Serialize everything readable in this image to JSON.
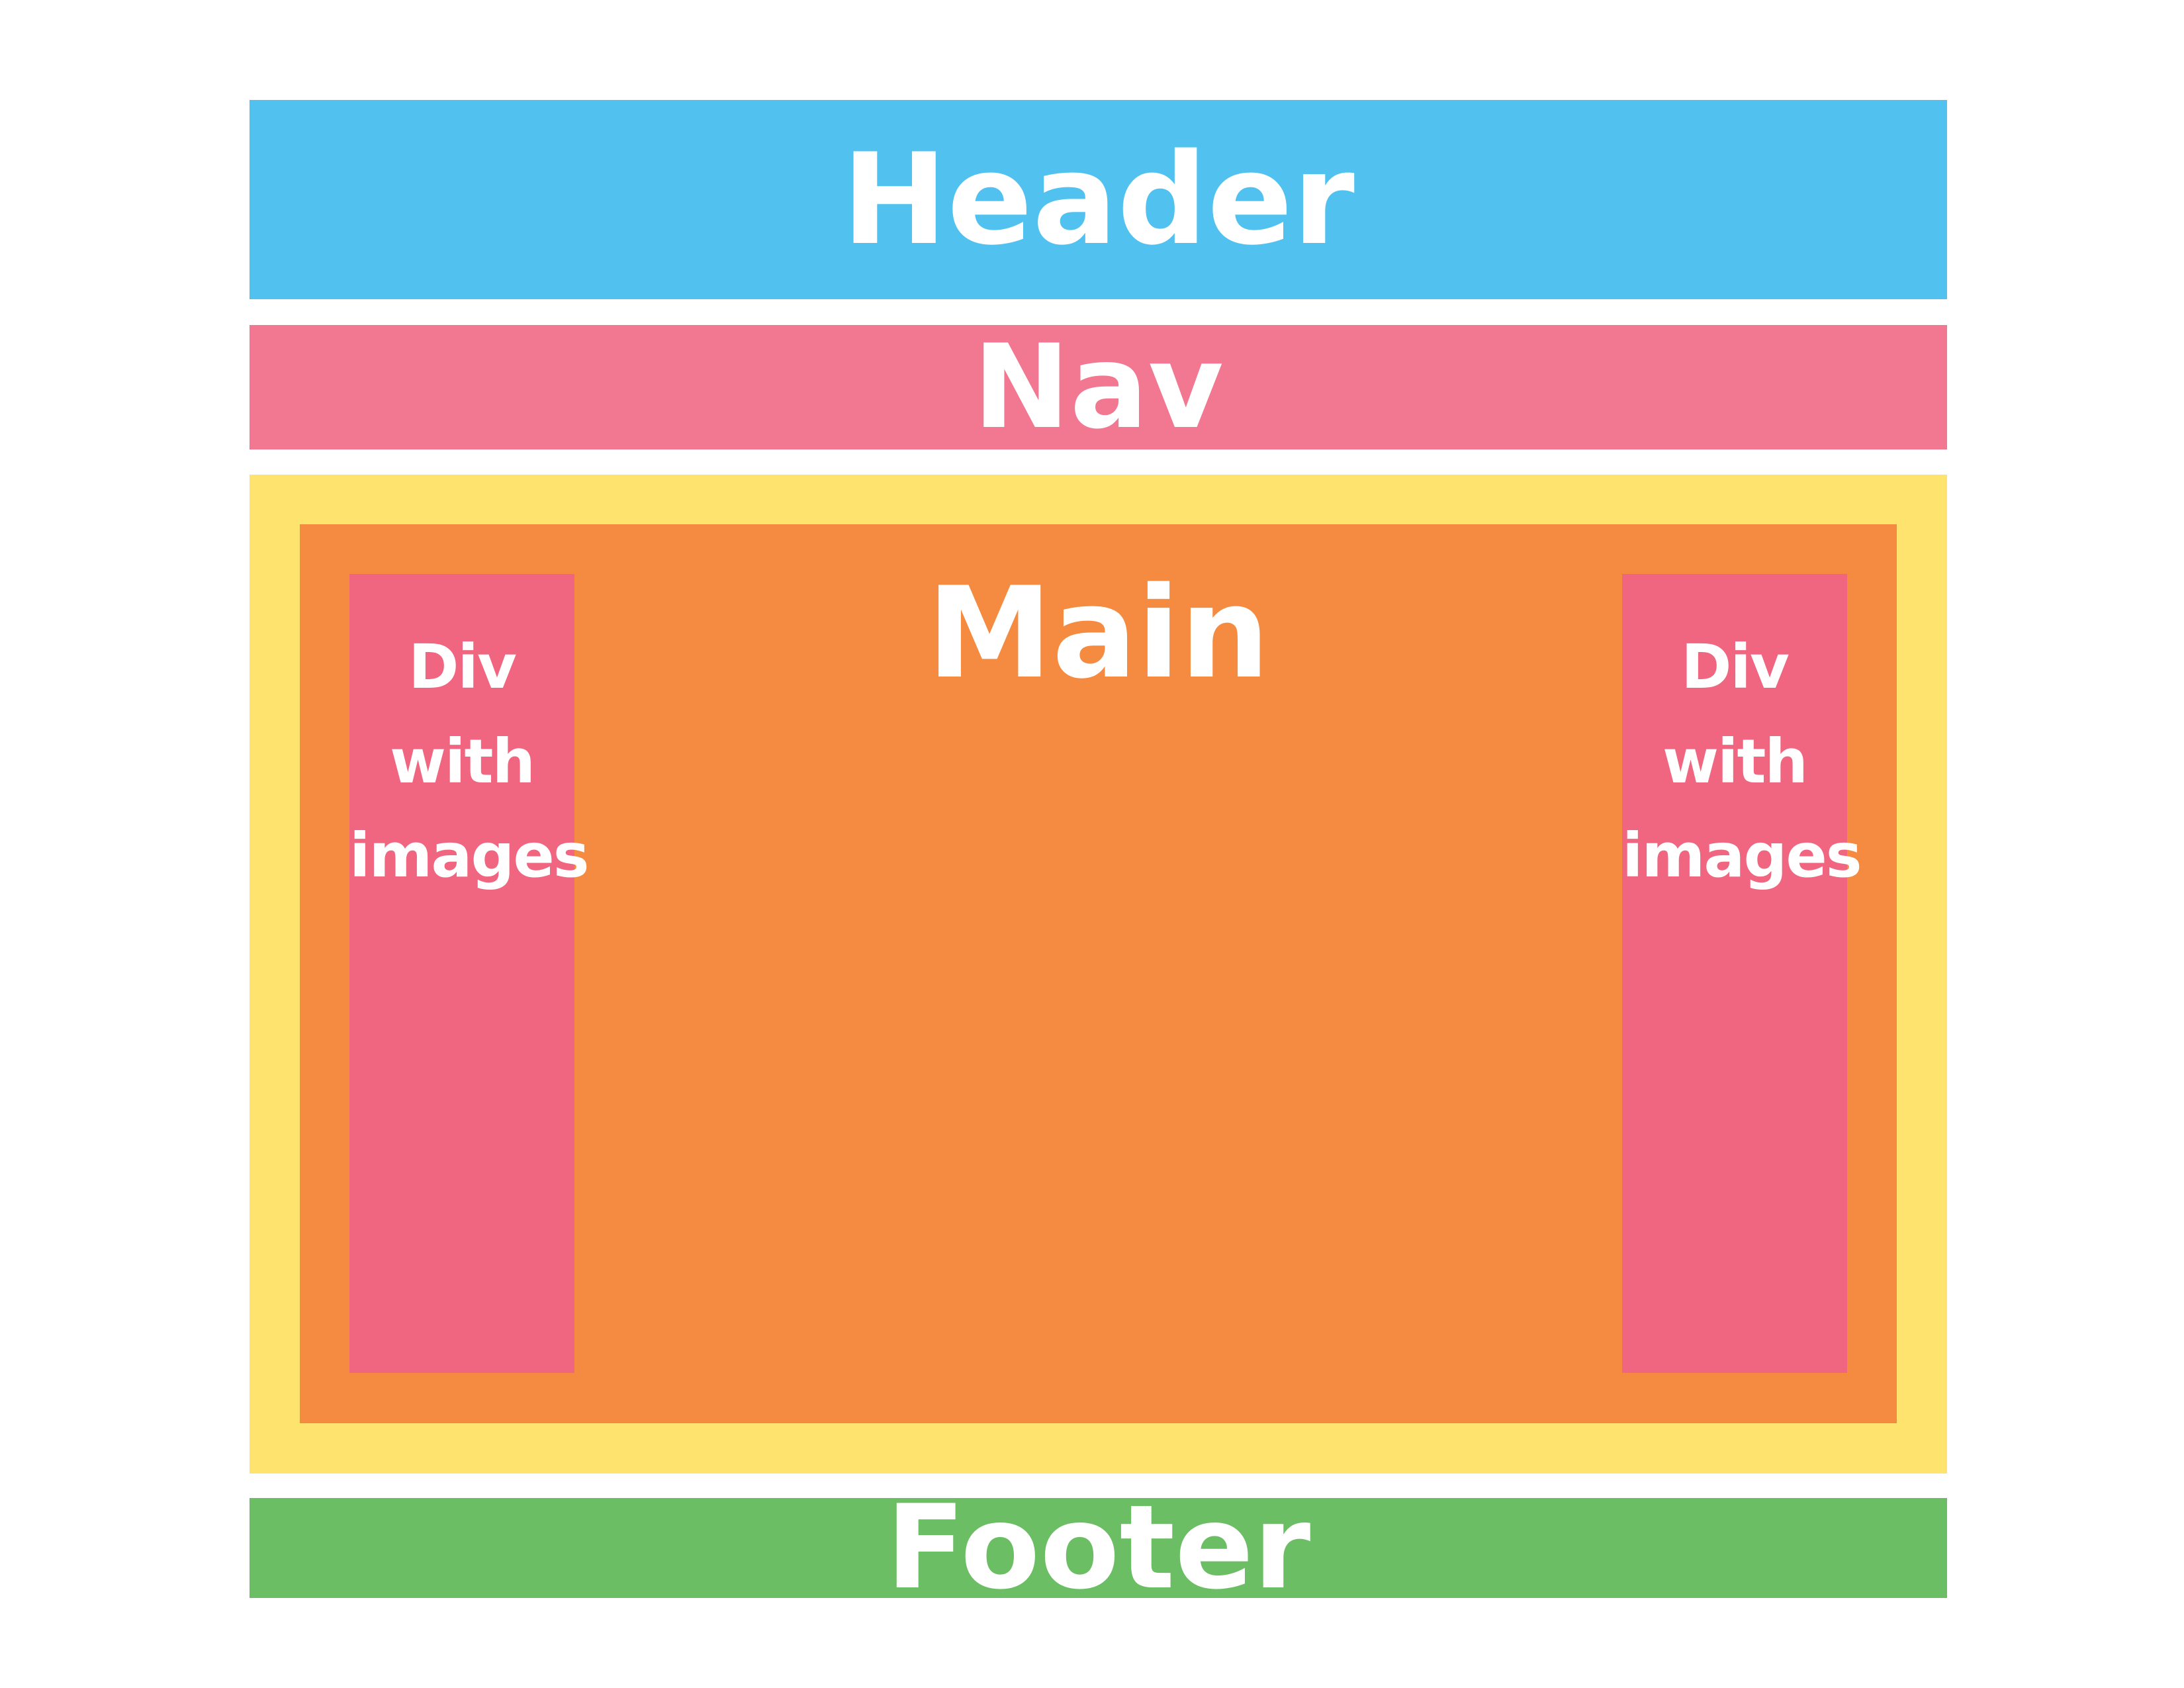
{
  "colors": {
    "header": "#51c2f0",
    "nav": "#f27891",
    "main_outer": "#fee46e",
    "main_inner": "#f48b40",
    "side_div": "#f0657f",
    "footer": "#6bbe63",
    "text": "#ffffff"
  },
  "header": {
    "label": "Header"
  },
  "nav": {
    "label": "Nav"
  },
  "main": {
    "label": "Main"
  },
  "side_divs": [
    {
      "lines": [
        "Div",
        "with",
        "images"
      ]
    },
    {
      "lines": [
        "Div",
        "with",
        "images"
      ]
    }
  ],
  "footer": {
    "label": "Footer"
  }
}
